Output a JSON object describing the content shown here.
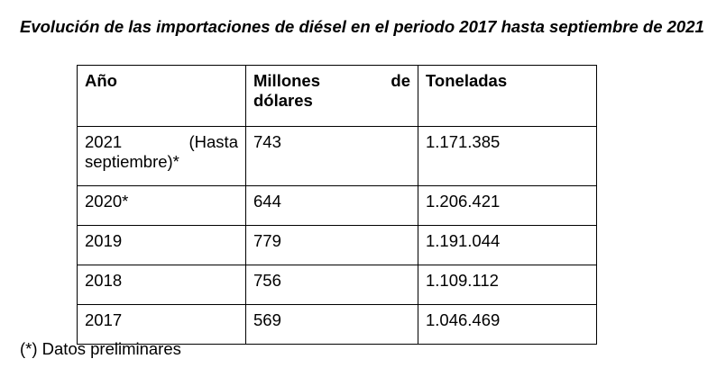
{
  "title": "Evolución de las importaciones de diésel en el periodo 2017 hasta septiembre de 2021",
  "table": {
    "headers": {
      "year": "Año",
      "usd_line1_a": "Millones",
      "usd_line1_b": "de",
      "usd_line2": "dólares",
      "tons": "Toneladas"
    },
    "rows": [
      {
        "year_a": "2021",
        "year_b": "(Hasta",
        "year_c": "septiembre)*",
        "usd": "743",
        "tons": "1.171.385"
      },
      {
        "year": "2020*",
        "usd": "644",
        "tons": "1.206.421"
      },
      {
        "year": "2019",
        "usd": "779",
        "tons": "1.191.044"
      },
      {
        "year": "2018",
        "usd": "756",
        "tons": "1.109.112"
      },
      {
        "year": "2017",
        "usd": "569",
        "tons": "1.046.469"
      }
    ]
  },
  "footnote": "(*) Datos preliminares"
}
